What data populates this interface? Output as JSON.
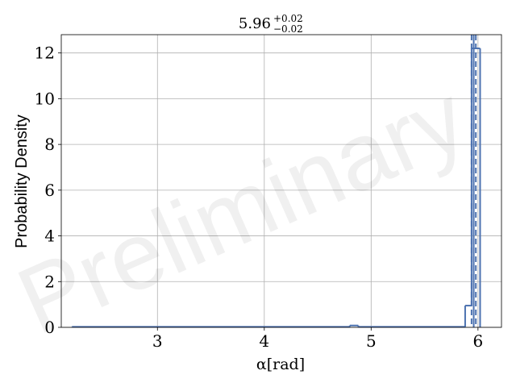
{
  "chart_data": {
    "type": "histogram",
    "title": {
      "value": "5.96",
      "upper": "+0.02",
      "lower": "−0.02"
    },
    "xlabel": "α[rad]",
    "ylabel": "Probability Density",
    "xlim": [
      2.1,
      6.22
    ],
    "ylim": [
      0,
      12.8
    ],
    "xticks": [
      3,
      4,
      5,
      6
    ],
    "yticks": [
      0,
      2,
      4,
      6,
      8,
      10,
      12
    ],
    "grid": true,
    "series_color": "#4c72b0",
    "bin_edges": [
      2.2,
      4.8,
      4.88,
      5.88,
      5.94,
      6.02
    ],
    "densities": [
      0.02,
      0.08,
      0.02,
      0.95,
      12.2
    ],
    "reference_lines": [
      {
        "x": 5.94,
        "style": "dashed"
      },
      {
        "x": 5.96,
        "style": "solid"
      },
      {
        "x": 5.98,
        "style": "dashed"
      }
    ],
    "watermark": "Preliminary"
  }
}
